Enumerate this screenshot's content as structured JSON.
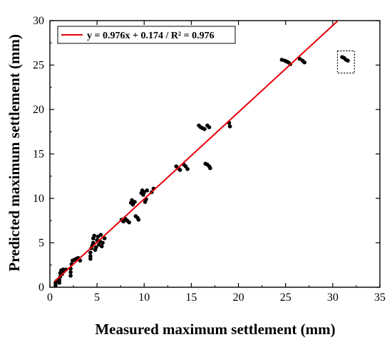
{
  "chart_data": {
    "type": "scatter",
    "xlabel": "Measured maximum settlement (mm)",
    "ylabel": "Predicted maximum settlement (mm)",
    "xlim": [
      0,
      35
    ],
    "ylim": [
      0,
      30
    ],
    "xticks": [
      "0",
      "5",
      "10",
      "15",
      "20",
      "25",
      "30",
      "35"
    ],
    "yticks": [
      "0",
      "5",
      "10",
      "15",
      "20",
      "25",
      "30"
    ],
    "grid": false,
    "legend_position": "top-left",
    "fit_line": {
      "label": "y = 0.976x + 0.174 / R² = 0.976",
      "slope": 0.976,
      "intercept": 0.174,
      "x_range": [
        0.5,
        30.5
      ],
      "color": "#e8000b"
    },
    "point_color": "#000000",
    "points": [
      [
        0.6,
        0.2
      ],
      [
        0.6,
        0.5
      ],
      [
        0.7,
        0.7
      ],
      [
        1.0,
        0.5
      ],
      [
        1.0,
        0.8
      ],
      [
        1.1,
        1.2
      ],
      [
        1.1,
        1.6
      ],
      [
        1.2,
        1.9
      ],
      [
        1.3,
        1.5
      ],
      [
        1.4,
        2.0
      ],
      [
        1.5,
        1.8
      ],
      [
        1.7,
        2.0
      ],
      [
        2.2,
        1.3
      ],
      [
        2.2,
        1.7
      ],
      [
        2.2,
        2.1
      ],
      [
        2.3,
        2.6
      ],
      [
        2.4,
        3.0
      ],
      [
        2.6,
        3.1
      ],
      [
        2.8,
        3.2
      ],
      [
        3.0,
        3.3
      ],
      [
        3.2,
        3.0
      ],
      [
        4.3,
        3.2
      ],
      [
        4.3,
        3.5
      ],
      [
        4.3,
        3.9
      ],
      [
        4.4,
        4.4
      ],
      [
        4.5,
        4.7
      ],
      [
        4.6,
        5.0
      ],
      [
        4.6,
        5.5
      ],
      [
        4.7,
        5.8
      ],
      [
        4.8,
        4.2
      ],
      [
        4.9,
        4.5
      ],
      [
        5.0,
        5.3
      ],
      [
        5.1,
        5.7
      ],
      [
        5.2,
        4.8
      ],
      [
        5.3,
        5.2
      ],
      [
        5.4,
        5.9
      ],
      [
        5.5,
        4.6
      ],
      [
        5.6,
        5.0
      ],
      [
        5.8,
        5.5
      ],
      [
        7.6,
        7.6
      ],
      [
        7.8,
        7.4
      ],
      [
        8.0,
        7.7
      ],
      [
        8.2,
        7.5
      ],
      [
        8.4,
        7.3
      ],
      [
        8.6,
        9.5
      ],
      [
        8.7,
        9.8
      ],
      [
        8.8,
        9.3
      ],
      [
        9.0,
        9.6
      ],
      [
        9.1,
        8.0
      ],
      [
        9.3,
        7.8
      ],
      [
        9.4,
        7.6
      ],
      [
        9.7,
        10.6
      ],
      [
        9.8,
        10.9
      ],
      [
        9.9,
        10.4
      ],
      [
        10.0,
        10.7
      ],
      [
        10.1,
        9.6
      ],
      [
        10.2,
        9.9
      ],
      [
        10.3,
        10.9
      ],
      [
        10.8,
        10.7
      ],
      [
        11.0,
        11.1
      ],
      [
        13.4,
        13.6
      ],
      [
        13.6,
        13.4
      ],
      [
        13.8,
        13.2
      ],
      [
        14.2,
        13.8
      ],
      [
        14.4,
        13.6
      ],
      [
        14.6,
        13.3
      ],
      [
        15.8,
        18.2
      ],
      [
        16.0,
        18.0
      ],
      [
        16.2,
        17.9
      ],
      [
        16.4,
        17.8
      ],
      [
        16.7,
        18.2
      ],
      [
        16.9,
        18.0
      ],
      [
        16.5,
        13.9
      ],
      [
        16.7,
        13.8
      ],
      [
        16.9,
        13.6
      ],
      [
        17.0,
        13.4
      ],
      [
        19.0,
        18.5
      ],
      [
        19.1,
        18.1
      ],
      [
        24.6,
        25.6
      ],
      [
        24.9,
        25.5
      ],
      [
        25.1,
        25.4
      ],
      [
        25.3,
        25.3
      ],
      [
        25.5,
        25.1
      ],
      [
        26.5,
        25.7
      ],
      [
        26.8,
        25.5
      ],
      [
        27.0,
        25.3
      ],
      [
        31.0,
        25.9
      ],
      [
        31.2,
        25.8
      ],
      [
        31.4,
        25.6
      ],
      [
        31.6,
        25.5
      ]
    ],
    "highlight_box": {
      "x": [
        30.5,
        32.3
      ],
      "y": [
        24.1,
        26.6
      ]
    }
  }
}
